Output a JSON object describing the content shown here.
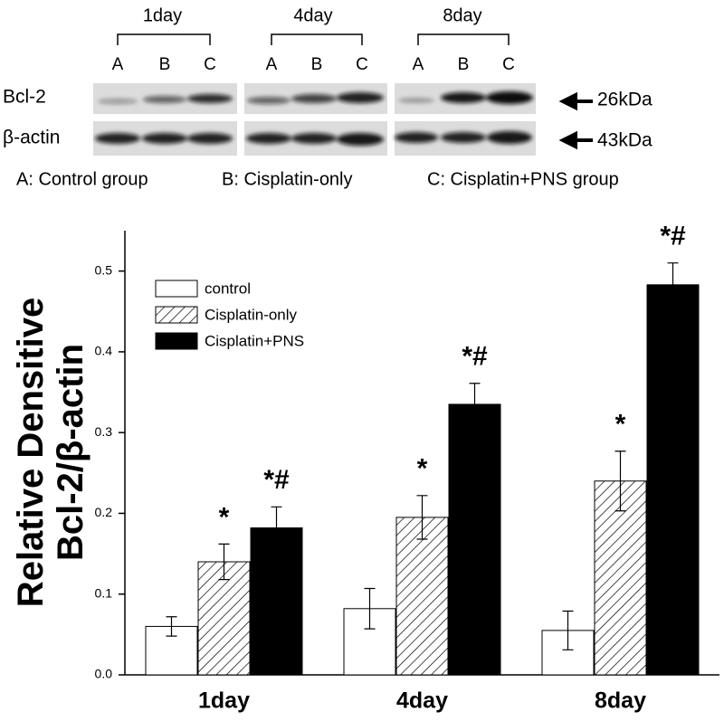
{
  "blot": {
    "groups": [
      {
        "label": "1day",
        "lanes": [
          "A",
          "B",
          "C"
        ]
      },
      {
        "label": "4day",
        "lanes": [
          "A",
          "B",
          "C"
        ]
      },
      {
        "label": "8day",
        "lanes": [
          "A",
          "B",
          "C"
        ]
      }
    ],
    "rows": [
      {
        "label": "Bcl-2",
        "size": "26kDa"
      },
      {
        "label": "β-actin",
        "size": "43kDa"
      }
    ],
    "key": [
      "A: Control group",
      "B: Cisplatin-only",
      "C: Cisplatin+PNS group"
    ]
  },
  "chart_data": {
    "type": "bar",
    "ylabel": [
      "Relative Densitive",
      "Bcl-2/β-actin"
    ],
    "categories": [
      "1day",
      "4day",
      "8day"
    ],
    "series": [
      {
        "name": "control",
        "color": "#ffffff",
        "values": [
          0.06,
          0.082,
          0.055
        ],
        "errors": [
          0.012,
          0.025,
          0.024
        ]
      },
      {
        "name": "Cisplatin-only",
        "color": "#ffffff",
        "hatch": true,
        "values": [
          0.14,
          0.195,
          0.24
        ],
        "errors": [
          0.022,
          0.027,
          0.037
        ],
        "annotations": [
          "*",
          "*",
          "*"
        ]
      },
      {
        "name": "Cisplatin+PNS",
        "color": "#000000",
        "values": [
          0.182,
          0.335,
          0.483
        ],
        "errors": [
          0.026,
          0.026,
          0.027
        ],
        "annotations": [
          "*#",
          "*#",
          "*#"
        ]
      }
    ],
    "ylim": [
      0,
      0.55
    ],
    "yticks": [
      {
        "value": 0,
        "label": "0.0"
      },
      0.1,
      0.2,
      0.3,
      0.4,
      0.5
    ],
    "legend": "upper left"
  }
}
